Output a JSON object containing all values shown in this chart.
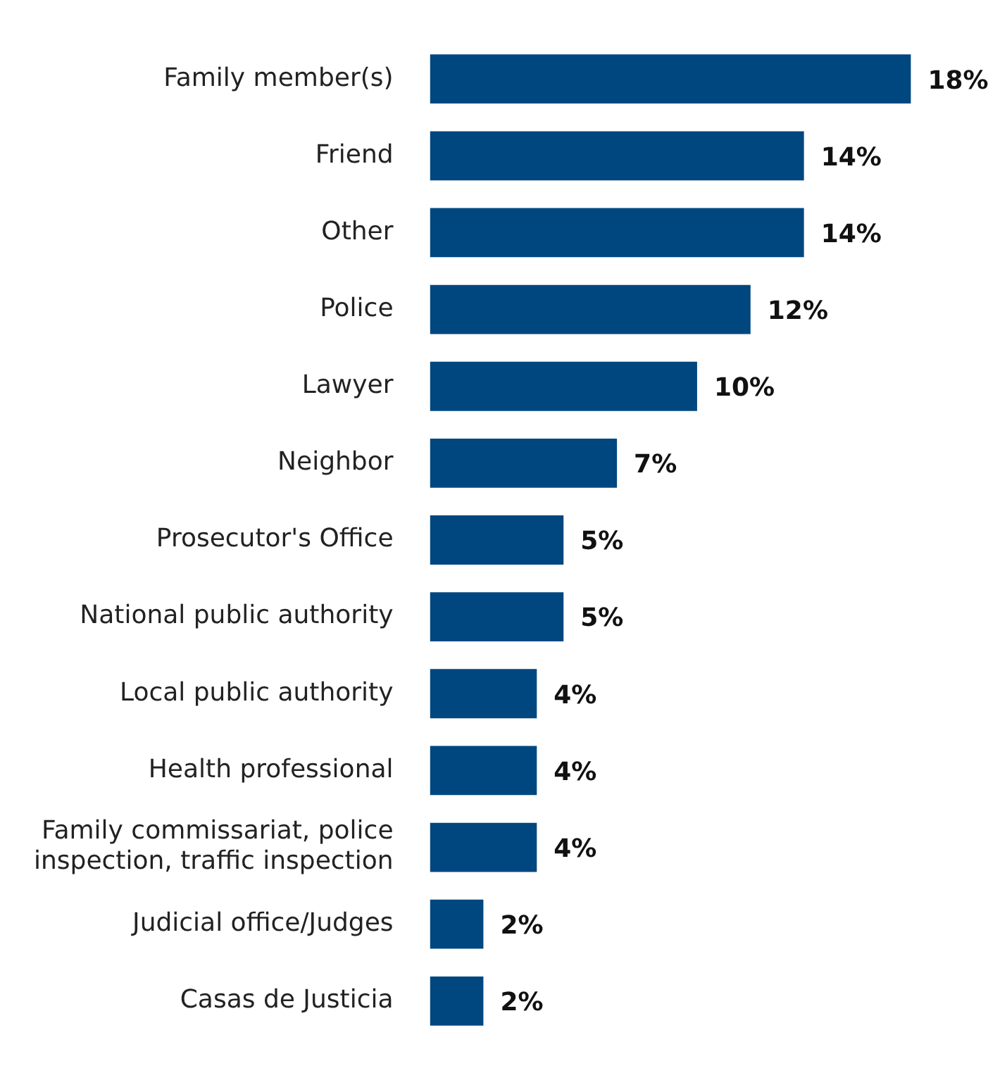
{
  "chart_data": {
    "type": "bar",
    "orientation": "horizontal",
    "categories": [
      "Family member(s)",
      "Friend",
      "Other",
      "Police",
      "Lawyer",
      "Neighbor",
      "Prosecutor's Office",
      "National public authority",
      "Local public authority",
      "Health professional",
      "Family commissariat, police inspection, traffic inspection",
      "Judicial office/Judges",
      "Casas de Justicia"
    ],
    "values": [
      18,
      14,
      14,
      12,
      10,
      7,
      5,
      5,
      4,
      4,
      4,
      2,
      2
    ],
    "value_labels": [
      "18%",
      "14%",
      "14%",
      "12%",
      "10%",
      "7%",
      "5%",
      "5%",
      "4%",
      "4%",
      "4%",
      "2%",
      "2%"
    ],
    "color": "#00467f"
  }
}
